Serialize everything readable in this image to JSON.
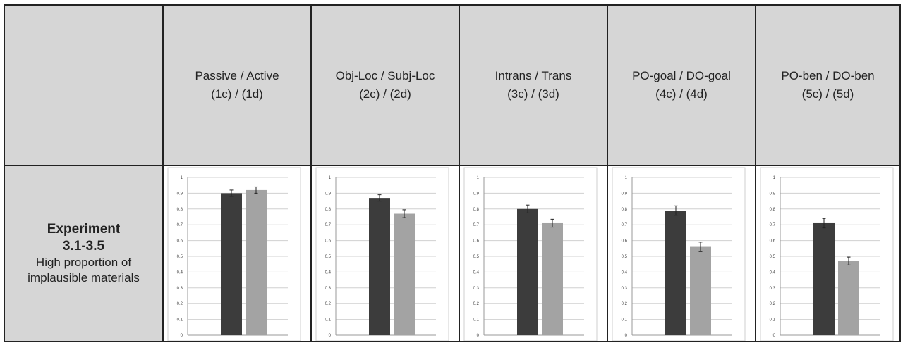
{
  "corner": "",
  "columns": [
    {
      "line1": "Passive / Active",
      "line2": "(1c) / (1d)"
    },
    {
      "line1": "Obj-Loc / Subj-Loc",
      "line2": "(2c) / (2d)"
    },
    {
      "line1": "Intrans / Trans",
      "line2": "(3c) / (3d)"
    },
    {
      "line1": "PO-goal / DO-goal",
      "line2": "(4c) / (4d)"
    },
    {
      "line1": "PO-ben / DO-ben",
      "line2": "(5c) / (5d)"
    }
  ],
  "row": {
    "title_line1": "Experiment",
    "title_line2": "3.1-3.5",
    "subtitle_line1": "High proportion of",
    "subtitle_line2": "implausible materials"
  },
  "colors": {
    "dark_bar": "#3c3c3c",
    "light_bar": "#a3a3a3",
    "header_bg": "#d6d6d6"
  },
  "chart_data": [
    {
      "type": "bar",
      "categories": [
        "1c",
        "1d"
      ],
      "values": [
        0.9,
        0.92
      ],
      "errors": [
        0.02,
        0.02
      ],
      "ylim": [
        0,
        1
      ],
      "yticks": [
        "0",
        "0.1",
        "0.2",
        "0.3",
        "0.4",
        "0.5",
        "0.6",
        "0.7",
        "0.8",
        "0.9",
        "1"
      ],
      "grid": true
    },
    {
      "type": "bar",
      "categories": [
        "2c",
        "2d"
      ],
      "values": [
        0.87,
        0.77
      ],
      "errors": [
        0.02,
        0.025
      ],
      "ylim": [
        0,
        1
      ],
      "yticks": [
        "0",
        "0.1",
        "0.2",
        "0.3",
        "0.4",
        "0.5",
        "0.6",
        "0.7",
        "0.8",
        "0.9",
        "1"
      ],
      "grid": true
    },
    {
      "type": "bar",
      "categories": [
        "3c",
        "3d"
      ],
      "values": [
        0.8,
        0.71
      ],
      "errors": [
        0.025,
        0.025
      ],
      "ylim": [
        0,
        1
      ],
      "yticks": [
        "0",
        "0.1",
        "0.2",
        "0.3",
        "0.4",
        "0.5",
        "0.6",
        "0.7",
        "0.8",
        "0.9",
        "1"
      ],
      "grid": true
    },
    {
      "type": "bar",
      "categories": [
        "4c",
        "4d"
      ],
      "values": [
        0.79,
        0.56
      ],
      "errors": [
        0.03,
        0.03
      ],
      "ylim": [
        0,
        1
      ],
      "yticks": [
        "0",
        "0.1",
        "0.2",
        "0.3",
        "0.4",
        "0.5",
        "0.6",
        "0.7",
        "0.8",
        "0.9",
        "1"
      ],
      "grid": true
    },
    {
      "type": "bar",
      "categories": [
        "5c",
        "5d"
      ],
      "values": [
        0.71,
        0.47
      ],
      "errors": [
        0.03,
        0.025
      ],
      "ylim": [
        0,
        1
      ],
      "yticks": [
        "0",
        "0.1",
        "0.2",
        "0.3",
        "0.4",
        "0.5",
        "0.6",
        "0.7",
        "0.8",
        "0.9",
        "1"
      ],
      "grid": true
    }
  ]
}
